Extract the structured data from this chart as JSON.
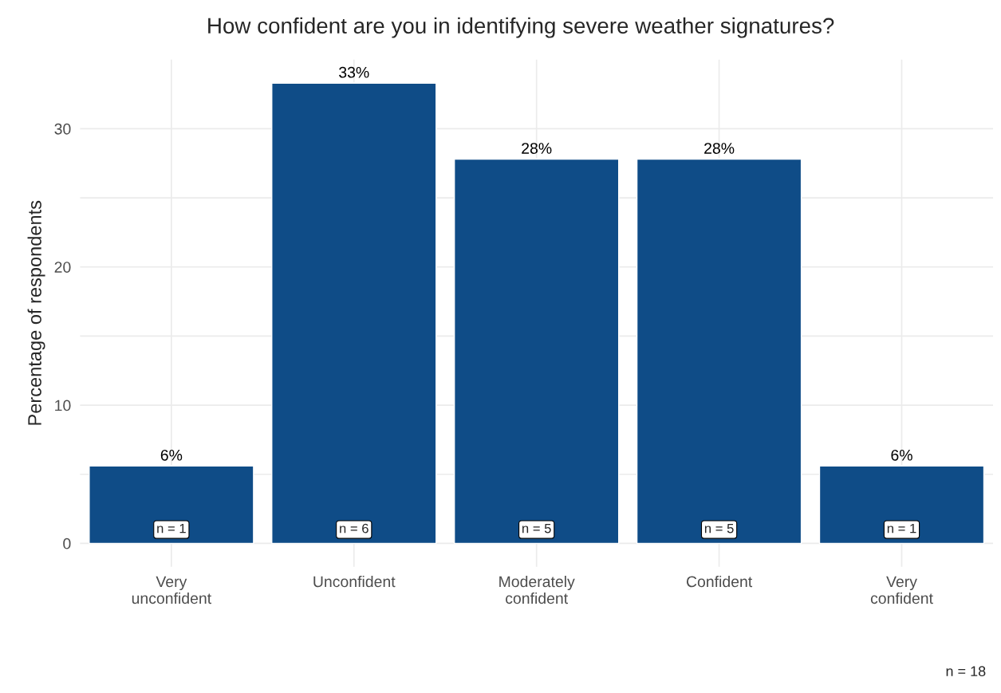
{
  "chart_data": {
    "type": "bar",
    "title": "How confident are you in identifying severe weather signatures?",
    "ylabel": "Percentage of respondents",
    "categories": [
      "Very\nunconfident",
      "Unconfident",
      "Moderately\nconfident",
      "Confident",
      "Very\nconfident"
    ],
    "values": [
      5.6,
      33.3,
      27.8,
      27.8,
      5.6
    ],
    "value_labels": [
      "6%",
      "33%",
      "28%",
      "28%",
      "6%"
    ],
    "color": "#0f4c87",
    "ylim": [
      -1.7,
      35
    ],
    "yticks": [
      0,
      {
        "value": 5,
        "label": null
      },
      10,
      {
        "value": 15,
        "label": null
      },
      20,
      {
        "value": 25,
        "label": null
      },
      30
    ],
    "grid": true,
    "annotations": [
      "n = 1",
      "n = 6",
      "n = 5",
      "n = 5",
      "n = 1",
      "n = 18"
    ]
  }
}
